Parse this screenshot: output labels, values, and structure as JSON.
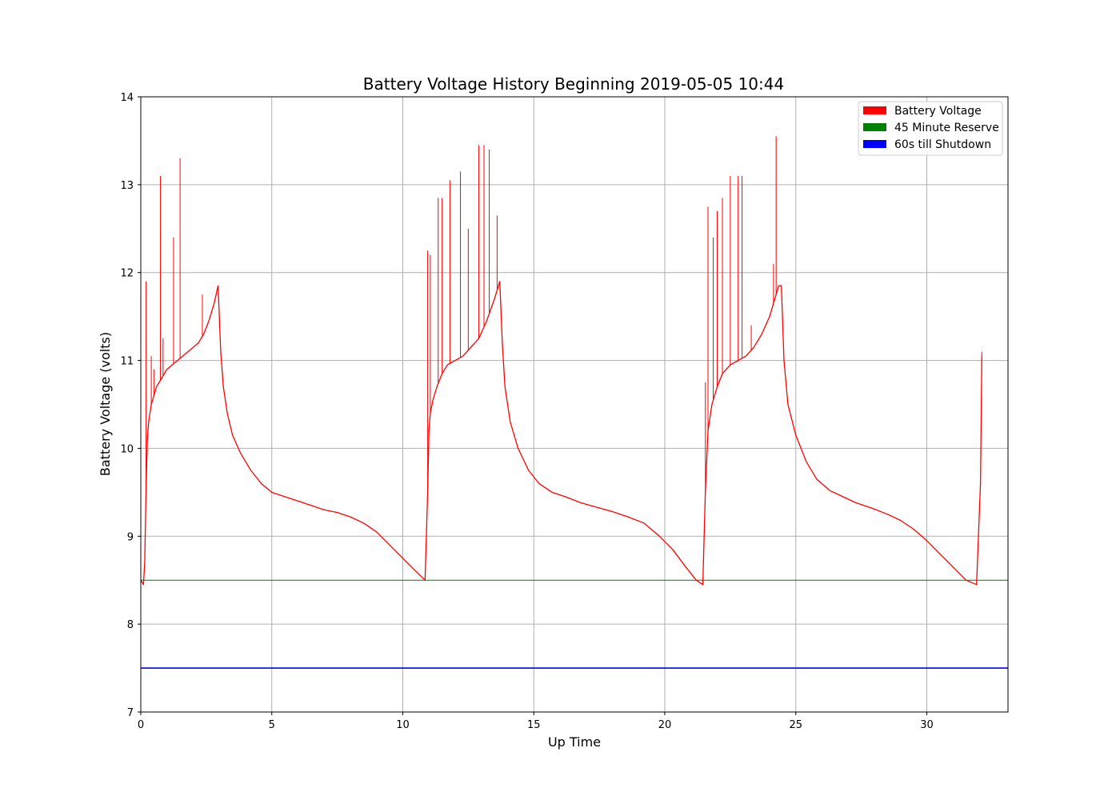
{
  "chart_data": {
    "type": "line",
    "title": "Battery Voltage History Beginning 2019-05-05 10:44",
    "xlabel": "Up Time",
    "ylabel": "Battery Voltage (volts)",
    "xlim": [
      0,
      33.1
    ],
    "ylim": [
      7,
      14
    ],
    "x_ticks": [
      0,
      5,
      10,
      15,
      20,
      25,
      30
    ],
    "y_ticks": [
      7,
      8,
      9,
      10,
      11,
      12,
      13,
      14
    ],
    "grid": true,
    "legend_position": "top-right",
    "series": [
      {
        "name": "Battery Voltage",
        "color": "#ff0000",
        "x": [
          0,
          0.1,
          0.15,
          0.2,
          0.25,
          0.3,
          0.4,
          0.5,
          0.6,
          0.7,
          0.8,
          1.0,
          1.2,
          1.4,
          1.6,
          1.8,
          2.0,
          2.2,
          2.4,
          2.6,
          2.8,
          2.95,
          3.05,
          3.15,
          3.3,
          3.5,
          3.8,
          4.2,
          4.6,
          5.0,
          5.5,
          6.0,
          6.5,
          7.0,
          7.5,
          8.0,
          8.5,
          9.0,
          9.5,
          10.0,
          10.5,
          10.85,
          10.95,
          11.0,
          11.05,
          11.15,
          11.3,
          11.5,
          11.7,
          12.0,
          12.3,
          12.6,
          12.9,
          13.2,
          13.5,
          13.7,
          13.8,
          13.9,
          14.1,
          14.4,
          14.8,
          15.2,
          15.7,
          16.2,
          16.8,
          17.4,
          18.0,
          18.6,
          19.2,
          19.8,
          20.3,
          20.8,
          21.2,
          21.45,
          21.55,
          21.65,
          21.8,
          22.0,
          22.2,
          22.5,
          22.8,
          23.1,
          23.4,
          23.7,
          24.0,
          24.2,
          24.35,
          24.45,
          24.55,
          24.7,
          25.0,
          25.4,
          25.8,
          26.3,
          26.8,
          27.3,
          27.9,
          28.5,
          29.0,
          29.5,
          30.0,
          30.5,
          31.0,
          31.5,
          31.9,
          32.05,
          32.1
        ],
        "y": [
          8.5,
          8.45,
          8.7,
          9.5,
          10.1,
          10.3,
          10.5,
          10.6,
          10.7,
          10.75,
          10.8,
          10.9,
          10.95,
          11.0,
          11.05,
          11.1,
          11.15,
          11.2,
          11.3,
          11.45,
          11.65,
          11.85,
          11.1,
          10.7,
          10.4,
          10.15,
          9.95,
          9.75,
          9.6,
          9.5,
          9.45,
          9.4,
          9.35,
          9.3,
          9.27,
          9.22,
          9.15,
          9.05,
          8.9,
          8.75,
          8.6,
          8.5,
          9.5,
          10.2,
          10.4,
          10.55,
          10.7,
          10.85,
          10.95,
          11.0,
          11.05,
          11.15,
          11.25,
          11.45,
          11.7,
          11.9,
          11.2,
          10.7,
          10.3,
          10.0,
          9.75,
          9.6,
          9.5,
          9.45,
          9.38,
          9.33,
          9.28,
          9.22,
          9.15,
          9.0,
          8.85,
          8.65,
          8.5,
          8.45,
          9.5,
          10.2,
          10.5,
          10.7,
          10.85,
          10.95,
          11.0,
          11.05,
          11.15,
          11.3,
          11.5,
          11.7,
          11.85,
          11.85,
          11.0,
          10.5,
          10.15,
          9.85,
          9.65,
          9.52,
          9.45,
          9.38,
          9.32,
          9.25,
          9.18,
          9.08,
          8.95,
          8.8,
          8.65,
          8.5,
          8.45,
          9.6,
          11.05
        ]
      },
      {
        "name": "45 Minute Reserve",
        "color": "#008000",
        "x": [
          0,
          33.1
        ],
        "y": [
          8.5,
          8.5
        ]
      },
      {
        "name": "60s till Shutdown",
        "color": "#0000ff",
        "x": [
          0,
          33.1
        ],
        "y": [
          7.5,
          7.5
        ]
      }
    ],
    "spikes": {
      "series": "Battery Voltage",
      "x": [
        0.2,
        0.4,
        0.5,
        0.75,
        0.85,
        1.25,
        1.5,
        2.35,
        10.95,
        11.05,
        11.35,
        11.5,
        11.8,
        12.2,
        12.5,
        12.9,
        13.1,
        13.3,
        13.6,
        21.55,
        21.65,
        21.85,
        22.0,
        22.2,
        22.5,
        22.8,
        22.95,
        23.3,
        24.15,
        24.25,
        32.1
      ],
      "y": [
        11.9,
        11.05,
        10.9,
        13.1,
        11.25,
        12.4,
        13.3,
        11.75,
        12.25,
        12.2,
        12.85,
        12.85,
        13.05,
        13.15,
        12.5,
        13.45,
        13.45,
        13.4,
        12.65,
        10.75,
        12.75,
        12.4,
        12.7,
        12.85,
        13.1,
        13.1,
        13.1,
        11.4,
        12.1,
        13.55,
        11.1
      ]
    }
  }
}
